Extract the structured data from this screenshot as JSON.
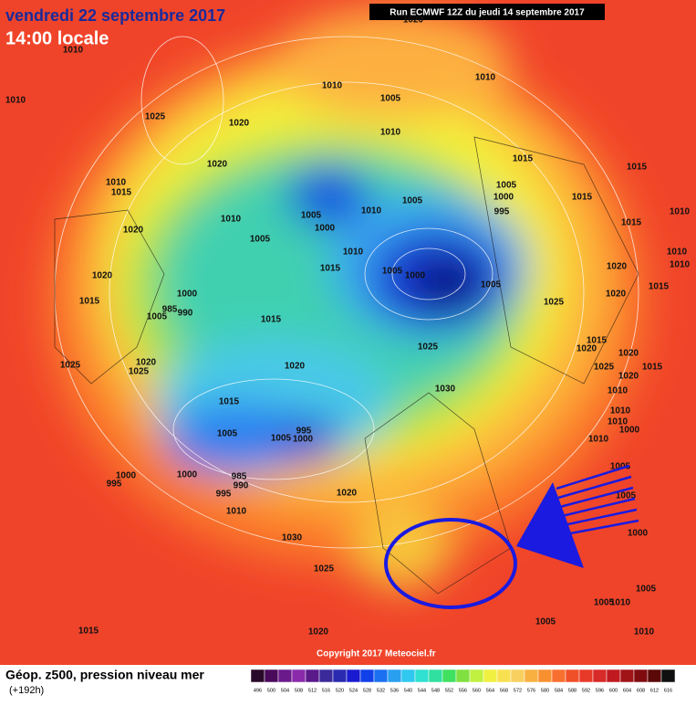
{
  "header": {
    "date": "vendredi 22 septembre 2017",
    "time": "14:00 locale",
    "run": "Run ECMWF 12Z du jeudi 14 septembre 2017"
  },
  "footer": {
    "title": "Géop. z500, pression niveau mer",
    "lead": "(+192h)",
    "copyright": "Copyright 2017 Meteociel.fr"
  },
  "scale": [
    "496",
    "500",
    "504",
    "508",
    "512",
    "516",
    "520",
    "524",
    "528",
    "532",
    "536",
    "540",
    "544",
    "548",
    "552",
    "556",
    "560",
    "564",
    "568",
    "572",
    "576",
    "580",
    "584",
    "588",
    "592",
    "596",
    "600",
    "604",
    "608",
    "612",
    "616"
  ],
  "pressure_labels": [
    "1010",
    "1020",
    "1010",
    "1025",
    "1020",
    "1010",
    "1005",
    "1010",
    "1010",
    "1020",
    "1010",
    "1015",
    "1010",
    "1005",
    "1010",
    "1005",
    "1000",
    "1020",
    "1005",
    "1010",
    "1015",
    "1005",
    "1000",
    "1005",
    "1005",
    "1000",
    "995",
    "1015",
    "1015",
    "1015",
    "1015",
    "1010",
    "1010",
    "1020",
    "1015",
    "1000",
    "1005",
    "985",
    "990",
    "1015",
    "1025",
    "1020",
    "1020",
    "1010",
    "1015",
    "1025",
    "1025",
    "1020",
    "1025",
    "1015",
    "1020",
    "1020",
    "1025",
    "1020",
    "1015",
    "1020",
    "1030",
    "1015",
    "1010",
    "1010",
    "1010",
    "1000",
    "1005",
    "1005",
    "995",
    "1000",
    "1010",
    "1005",
    "1000",
    "995",
    "1000",
    "985",
    "990",
    "995",
    "1020",
    "1010",
    "1005",
    "1000",
    "1030",
    "1025",
    "1005",
    "1010",
    "1005",
    "1005",
    "1015",
    "1020",
    "1010"
  ]
}
